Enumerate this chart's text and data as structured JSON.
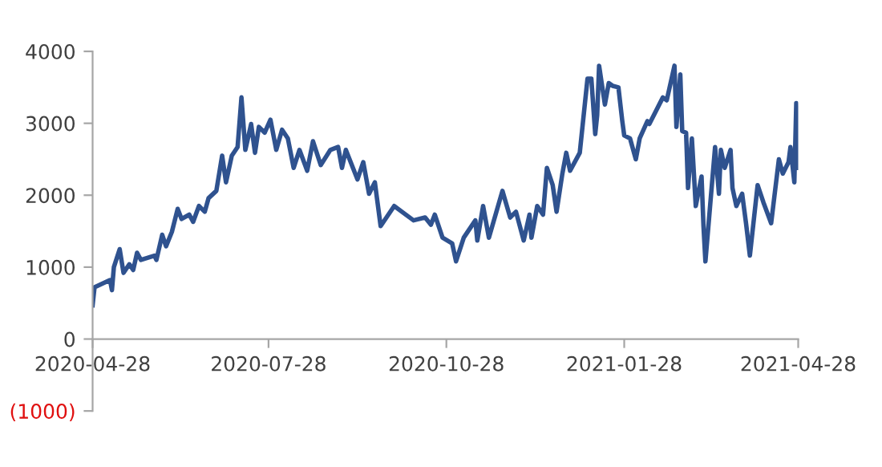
{
  "chart_data": {
    "type": "line",
    "xlim": [
      "2020-04-28",
      "2021-04-28"
    ],
    "xticks": [
      "2020-04-28",
      "2020-07-28",
      "2020-10-28",
      "2021-01-28",
      "2021-04-28"
    ],
    "ylim": [
      -1000,
      4000
    ],
    "yticks": [
      {
        "value": -1000,
        "label": "(1000)"
      },
      0,
      1000,
      2000,
      3000,
      4000
    ],
    "marker": "none",
    "line_style": "solid",
    "series": [
      {
        "color": "#2f528f",
        "x": [
          "2020-04-28",
          "2020-04-29",
          "2020-05-07",
          "2020-05-08",
          "2020-05-09",
          "2020-05-12",
          "2020-05-14",
          "2020-05-17",
          "2020-05-19",
          "2020-05-21",
          "2020-05-23",
          "2020-05-30",
          "2020-05-31",
          "2020-06-03",
          "2020-06-05",
          "2020-06-08",
          "2020-06-11",
          "2020-06-13",
          "2020-06-17",
          "2020-06-19",
          "2020-06-22",
          "2020-06-25",
          "2020-06-27",
          "2020-07-01",
          "2020-07-04",
          "2020-07-06",
          "2020-07-09",
          "2020-07-12",
          "2020-07-14",
          "2020-07-16",
          "2020-07-19",
          "2020-07-21",
          "2020-07-23",
          "2020-07-26",
          "2020-07-29",
          "2020-08-01",
          "2020-08-04",
          "2020-08-07",
          "2020-08-10",
          "2020-08-13",
          "2020-08-17",
          "2020-08-20",
          "2020-08-24",
          "2020-08-29",
          "2020-09-02",
          "2020-09-04",
          "2020-09-06",
          "2020-09-12",
          "2020-09-15",
          "2020-09-18",
          "2020-09-21",
          "2020-09-24",
          "2020-10-01",
          "2020-10-11",
          "2020-10-17",
          "2020-10-20",
          "2020-10-22",
          "2020-10-26",
          "2020-10-31",
          "2020-11-02",
          "2020-11-06",
          "2020-11-12",
          "2020-11-13",
          "2020-11-16",
          "2020-11-19",
          "2020-11-26",
          "2020-11-30",
          "2020-12-03",
          "2020-12-07",
          "2020-12-10",
          "2020-12-11",
          "2020-12-14",
          "2020-12-17",
          "2020-12-19",
          "2020-12-22",
          "2020-12-24",
          "2020-12-27",
          "2020-12-29",
          "2020-12-31",
          "2021-01-05",
          "2021-01-09",
          "2021-01-11",
          "2021-01-13",
          "2021-01-14",
          "2021-01-15",
          "2021-01-18",
          "2021-01-20",
          "2021-01-22",
          "2021-01-25",
          "2021-01-27",
          "2021-01-28",
          "2021-01-31",
          "2021-02-03",
          "2021-02-05",
          "2021-02-09",
          "2021-02-10",
          "2021-02-17",
          "2021-02-19",
          "2021-02-23",
          "2021-02-24",
          "2021-02-26",
          "2021-02-27",
          "2021-03-01",
          "2021-03-02",
          "2021-03-04",
          "2021-03-06",
          "2021-03-09",
          "2021-03-10",
          "2021-03-11",
          "2021-03-16",
          "2021-03-18",
          "2021-03-19",
          "2021-03-21",
          "2021-03-24",
          "2021-03-25",
          "2021-03-27",
          "2021-03-30",
          "2021-04-01",
          "2021-04-03",
          "2021-04-07",
          "2021-04-10",
          "2021-04-14",
          "2021-04-18",
          "2021-04-20",
          "2021-04-23",
          "2021-04-24",
          "2021-04-26",
          "2021-04-27",
          "2021-04-28"
        ],
        "values": [
          470,
          720,
          820,
          680,
          1000,
          1250,
          920,
          1040,
          960,
          1200,
          1100,
          1160,
          1100,
          1450,
          1290,
          1490,
          1810,
          1670,
          1730,
          1630,
          1850,
          1770,
          1960,
          2060,
          2550,
          2180,
          2550,
          2670,
          3360,
          2630,
          2990,
          2590,
          2950,
          2870,
          3050,
          2630,
          2910,
          2790,
          2380,
          2630,
          2340,
          2750,
          2420,
          2630,
          2670,
          2380,
          2630,
          2220,
          2460,
          2020,
          2180,
          1570,
          1850,
          1650,
          1690,
          1590,
          1730,
          1410,
          1330,
          1080,
          1410,
          1650,
          1370,
          1850,
          1410,
          2060,
          1690,
          1770,
          1370,
          1730,
          1410,
          1850,
          1730,
          2380,
          2140,
          1770,
          2300,
          2590,
          2340,
          2590,
          3620,
          3620,
          2850,
          3110,
          3800,
          3260,
          3560,
          3520,
          3500,
          3030,
          2830,
          2790,
          2500,
          2790,
          3030,
          2990,
          3360,
          3320,
          3800,
          2950,
          3680,
          2890,
          2870,
          2100,
          2790,
          1850,
          2260,
          1570,
          1080,
          2670,
          2020,
          2630,
          2380,
          2630,
          2100,
          1850,
          2020,
          1610,
          1160,
          2140,
          1900,
          1610,
          2500,
          2300,
          2460,
          2670,
          2180,
          3280,
          2380
        ]
      }
    ]
  }
}
